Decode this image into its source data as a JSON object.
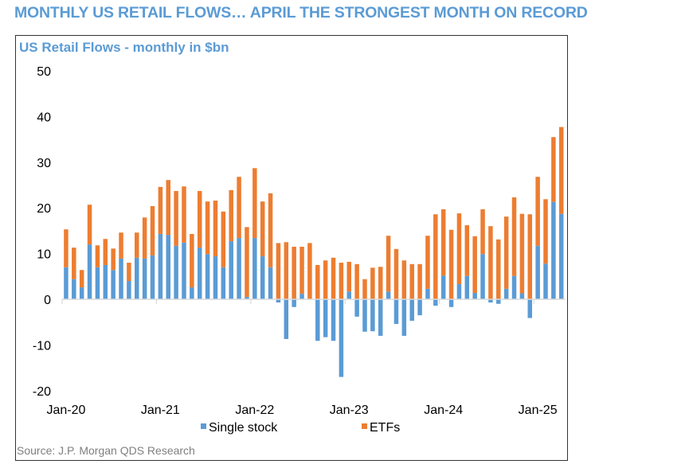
{
  "headline": "MONTHLY US RETAIL FLOWS… APRIL THE STRONGEST MONTH ON RECORD",
  "source": "Source: J.P. Morgan QDS Research",
  "colors": {
    "headline": "#5b9bd5",
    "single_stock": "#5b9bd5",
    "etfs": "#ed7d31",
    "axis": "#d9d9d9"
  },
  "chart_data": {
    "type": "bar",
    "stacked": true,
    "title": "US Retail Flows - monthly in $bn",
    "xlabel": "",
    "ylabel": "",
    "ylim": [
      -20,
      50
    ],
    "yticks": [
      50,
      40,
      30,
      20,
      10,
      0,
      -10,
      -20
    ],
    "xtick_labels": [
      "Jan-20",
      "Jan-21",
      "Jan-22",
      "Jan-23",
      "Jan-24",
      "Jan-25"
    ],
    "grid": false,
    "legend_position": "bottom",
    "categories": [
      "Jan-20",
      "Feb-20",
      "Mar-20",
      "Apr-20",
      "May-20",
      "Jun-20",
      "Jul-20",
      "Aug-20",
      "Sep-20",
      "Oct-20",
      "Nov-20",
      "Dec-20",
      "Jan-21",
      "Feb-21",
      "Mar-21",
      "Apr-21",
      "May-21",
      "Jun-21",
      "Jul-21",
      "Aug-21",
      "Sep-21",
      "Oct-21",
      "Nov-21",
      "Dec-21",
      "Jan-22",
      "Feb-22",
      "Mar-22",
      "Apr-22",
      "May-22",
      "Jun-22",
      "Jul-22",
      "Aug-22",
      "Sep-22",
      "Oct-22",
      "Nov-22",
      "Dec-22",
      "Jan-23",
      "Feb-23",
      "Mar-23",
      "Apr-23",
      "May-23",
      "Jun-23",
      "Jul-23",
      "Aug-23",
      "Sep-23",
      "Oct-23",
      "Nov-23",
      "Dec-23",
      "Jan-24",
      "Feb-24",
      "Mar-24",
      "Apr-24",
      "May-24",
      "Jun-24",
      "Jul-24",
      "Aug-24",
      "Sep-24",
      "Oct-24",
      "Nov-24",
      "Dec-24",
      "Jan-25",
      "Feb-25",
      "Mar-25",
      "Apr-25"
    ],
    "series": [
      {
        "name": "Single stock",
        "color": "#5b9bd5",
        "values": [
          7.0,
          4.4,
          2.6,
          12.0,
          7.0,
          7.5,
          6.4,
          8.9,
          4.0,
          9.1,
          8.9,
          9.6,
          14.3,
          14.1,
          11.7,
          12.4,
          2.6,
          11.3,
          9.9,
          9.4,
          7.0,
          12.7,
          13.4,
          0.5,
          13.4,
          9.4,
          7.0,
          -0.7,
          -8.7,
          -1.7,
          1.2,
          0.0,
          -9.1,
          -8.3,
          -9.1,
          -17.0,
          1.7,
          -3.8,
          -7.1,
          -7.0,
          -8.0,
          1.7,
          -5.4,
          -8.0,
          -4.7,
          -3.5,
          2.3,
          -1.4,
          5.2,
          -1.7,
          3.3,
          5.1,
          1.4,
          9.9,
          -0.7,
          -1.0,
          2.3,
          5.1,
          1.3,
          -4.1,
          11.7,
          7.8,
          21.3,
          18.7
        ]
      },
      {
        "name": "ETFs",
        "color": "#ed7d31",
        "values": [
          8.3,
          6.9,
          3.8,
          8.7,
          4.8,
          5.7,
          4.7,
          5.7,
          4.0,
          5.5,
          9.0,
          10.8,
          10.3,
          12.0,
          12.0,
          12.3,
          11.7,
          12.4,
          11.5,
          12.2,
          12.2,
          11.2,
          13.4,
          15.3,
          15.3,
          12.0,
          16.2,
          12.3,
          12.5,
          11.5,
          10.3,
          12.3,
          7.5,
          8.5,
          9.1,
          8.0,
          6.5,
          7.7,
          4.4,
          6.9,
          7.1,
          12.2,
          11.0,
          8.5,
          7.7,
          7.7,
          11.6,
          18.6,
          14.5,
          15.2,
          15.5,
          11.1,
          12.4,
          9.8,
          16.0,
          13.1,
          15.8,
          17.2,
          17.4,
          18.6,
          15.1,
          14.1,
          14.2,
          19.0
        ]
      }
    ]
  }
}
